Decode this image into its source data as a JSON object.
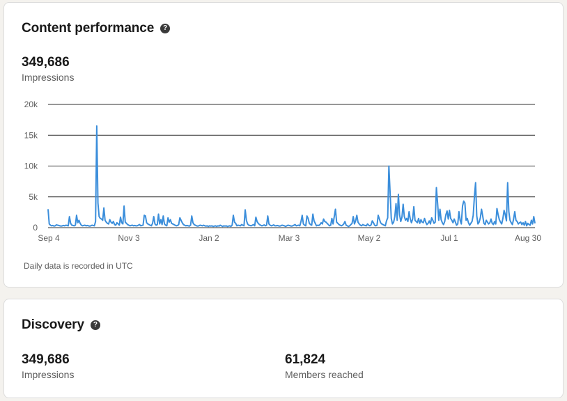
{
  "content_performance": {
    "title": "Content performance",
    "help_icon": "question-circle-icon",
    "impressions_value": "349,686",
    "impressions_label": "Impressions",
    "footnote": "Daily data is recorded in UTC"
  },
  "discovery": {
    "title": "Discovery",
    "help_icon": "question-circle-icon",
    "impressions_value": "349,686",
    "impressions_label": "Impressions",
    "members_value": "61,824",
    "members_label": "Members reached"
  },
  "colors": {
    "line": "#3b8edb",
    "grid": "#2f2f2f"
  },
  "chart_data": {
    "type": "line",
    "y_ticks": [
      {
        "value": 0,
        "label": "0"
      },
      {
        "value": 5000,
        "label": "5k"
      },
      {
        "value": 10000,
        "label": "10k"
      },
      {
        "value": 15000,
        "label": "15k"
      },
      {
        "value": 20000,
        "label": "20k"
      }
    ],
    "ylim": [
      0,
      20000
    ],
    "x_ticks": [
      "Sep 4",
      "Nov 3",
      "Jan 2",
      "Mar 3",
      "May 2",
      "Jul 1",
      "Aug 30"
    ],
    "grid": "horizontal",
    "series": [
      {
        "values": [
          3000,
          600,
          400,
          300,
          350,
          250,
          300,
          450,
          400,
          350,
          300,
          250,
          300,
          350,
          300,
          400,
          350,
          300,
          1800,
          700,
          400,
          350,
          300,
          400,
          2000,
          800,
          1200,
          700,
          400,
          300,
          350,
          400,
          300,
          350,
          300,
          250,
          300,
          400,
          350,
          300,
          1000,
          16500,
          4000,
          1800,
          1500,
          1400,
          1200,
          3200,
          1200,
          900,
          700,
          600,
          1300,
          900,
          700,
          1000,
          500,
          400,
          800,
          600,
          400,
          1700,
          800,
          600,
          3500,
          900,
          700,
          500,
          400,
          300,
          350,
          400,
          300,
          350,
          300,
          300,
          400,
          500,
          300,
          350,
          400,
          2000,
          1900,
          800,
          600,
          500,
          400,
          300,
          700,
          1800,
          600,
          400,
          500,
          2200,
          600,
          1300,
          500,
          1900,
          600,
          400,
          300,
          1600,
          900,
          1300,
          700,
          600,
          500,
          400,
          300,
          350,
          500,
          1600,
          1200,
          800,
          500,
          400,
          300,
          350,
          300,
          250,
          400,
          1900,
          800,
          500,
          400,
          300,
          250,
          300,
          400,
          350,
          300,
          400,
          300,
          250,
          300,
          200,
          300,
          250,
          300,
          200,
          250,
          300,
          200,
          300,
          250,
          400,
          300,
          200,
          300,
          250,
          300,
          200,
          250,
          300,
          200,
          400,
          2000,
          900,
          700,
          300,
          400,
          350,
          300,
          500,
          400,
          300,
          2900,
          1200,
          600,
          400,
          350,
          300,
          400,
          500,
          300,
          1700,
          1000,
          700,
          500,
          400,
          300,
          350,
          450,
          300,
          400,
          1900,
          600,
          400,
          300,
          350,
          450,
          300,
          300,
          350,
          300,
          250,
          300,
          400,
          350,
          300,
          200,
          300,
          400,
          350,
          300,
          250,
          300,
          400,
          500,
          300,
          350,
          400,
          300,
          1000,
          2000,
          600,
          400,
          300,
          1900,
          1500,
          700,
          500,
          400,
          2200,
          1100,
          700,
          300,
          400,
          350,
          500,
          800,
          600,
          1400,
          1000,
          900,
          700,
          500,
          300,
          400,
          1500,
          600,
          1800,
          3000,
          900,
          700,
          500,
          400,
          300,
          400,
          600,
          1000,
          400,
          300,
          200,
          300,
          500,
          700,
          1800,
          600,
          1100,
          2000,
          900,
          600,
          400,
          300,
          500,
          400,
          350,
          300,
          600,
          400,
          300,
          450,
          1100,
          800,
          400,
          300,
          400,
          2000,
          1400,
          800,
          600,
          500,
          400,
          300,
          1100,
          1600,
          10000,
          5800,
          1500,
          600,
          900,
          1800,
          3900,
          1200,
          5400,
          2100,
          1000,
          1700,
          3800,
          1800,
          1200,
          1500,
          1000,
          2600,
          1400,
          800,
          1400,
          3400,
          1200,
          1000,
          800,
          1500,
          700,
          1300,
          900,
          800,
          1500,
          900,
          500,
          700,
          1100,
          600,
          1600,
          1200,
          700,
          900,
          6500,
          4000,
          1200,
          3000,
          1300,
          800,
          500,
          1000,
          2100,
          2700,
          1400,
          2800,
          1500,
          1200,
          800,
          1400,
          900,
          400,
          600,
          2600,
          1200,
          600,
          3500,
          4300,
          4000,
          1200,
          1500,
          800,
          400,
          700,
          1000,
          2000,
          5000,
          7300,
          1900,
          600,
          900,
          1600,
          3000,
          1900,
          700,
          500,
          1200,
          900,
          600,
          800,
          1400,
          700,
          500,
          1000,
          600,
          3100,
          2100,
          1300,
          900,
          600,
          1500,
          2800,
          2100,
          1100,
          7300,
          2600,
          1200,
          800,
          500,
          1400,
          2600,
          1200,
          1000,
          600,
          800,
          900,
          500,
          800,
          400,
          1000,
          300,
          700,
          500,
          400,
          1200,
          600,
          1800,
          700
        ]
      }
    ]
  }
}
